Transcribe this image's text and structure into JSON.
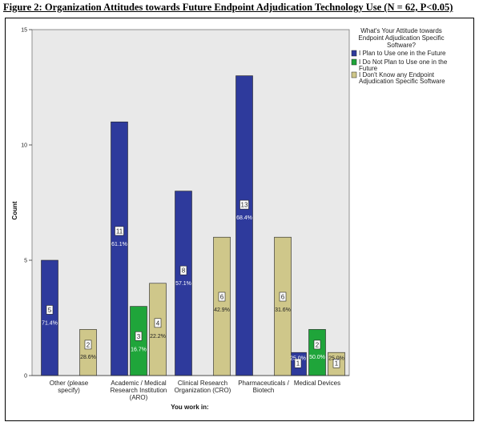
{
  "figure_title": "Figure 2: Organization Attitudes towards Future Endpoint Adjudication Technology Use (N = 62, P<0.05)",
  "colors": {
    "plot_bg": "#e9e9e9",
    "series": [
      "#2e3a9c",
      "#1fa53a",
      "#cfc78a"
    ],
    "bar_stroke": "#222222"
  },
  "chart_data": {
    "type": "bar",
    "title": "Figure 2: Organization Attitudes towards Future Endpoint Adjudication Technology Use (N = 62, P<0.05)",
    "xlabel": "You work in:",
    "ylabel": "Count",
    "ylim": [
      0,
      15
    ],
    "yticks": [
      "0",
      "5",
      "10",
      "15"
    ],
    "ytick_values": [
      0,
      5,
      10,
      15
    ],
    "grid": false,
    "legend_position": "top-right",
    "legend_title": [
      "What's Your Attitude towards",
      "Endpoint Adjudication Specific",
      "Software?"
    ],
    "categories": [
      [
        "Other (please",
        "specify)"
      ],
      [
        "Academic / Medical",
        "Research Institution",
        "(ARO)"
      ],
      [
        "Clinical Research",
        "Organization (CRO)"
      ],
      [
        "Pharmaceuticals /",
        "Biotech"
      ],
      [
        "Medical Devices"
      ]
    ],
    "series": [
      {
        "name": [
          "I Plan to Use one in the Future"
        ],
        "values": [
          5,
          11,
          8,
          13,
          1
        ],
        "count_labels": [
          "5",
          "11",
          "8",
          "13",
          "1"
        ],
        "pct_labels": [
          "71.4%",
          "61.1%",
          "57.1%",
          "68.4%",
          "25.0%"
        ]
      },
      {
        "name": [
          "I Do Not Plan to Use one in the",
          "Future"
        ],
        "values": [
          0,
          3,
          0,
          0,
          2
        ],
        "count_labels": [
          "",
          "3",
          "",
          "",
          "2"
        ],
        "pct_labels": [
          "",
          "16.7%",
          "",
          "",
          "50.0%"
        ]
      },
      {
        "name": [
          "I Don't Know any Endpoint",
          "Adjudication Specific Software"
        ],
        "values": [
          2,
          4,
          6,
          6,
          1
        ],
        "count_labels": [
          "2",
          "4",
          "6",
          "6",
          "1"
        ],
        "pct_labels": [
          "28.6%",
          "22.2%",
          "42.9%",
          "31.6%",
          "25.0%"
        ]
      }
    ]
  }
}
